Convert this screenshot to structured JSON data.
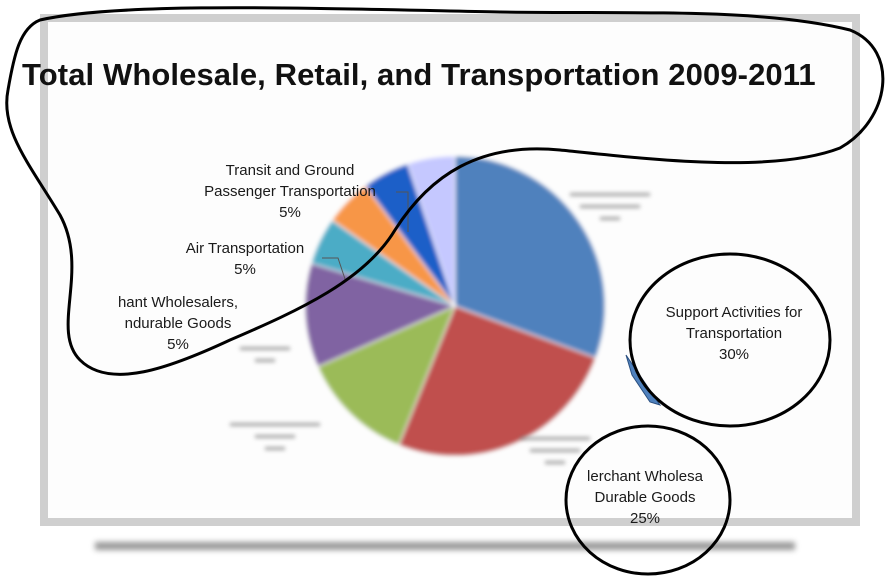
{
  "chart_data": {
    "type": "pie",
    "title": "Total Wholesale, Retail, and Transportation 2009-2011",
    "slices": [
      {
        "label": "Support Activities for Transportation",
        "value": 30,
        "value_label": "30%",
        "color": "#4f81bd"
      },
      {
        "label": "Merchant Wholesalers, Durable Goods",
        "value": 25,
        "value_label": "25%",
        "color": "#c0504d"
      },
      {
        "label": "",
        "value": 12,
        "value_label": "",
        "color": "#9bbb59"
      },
      {
        "label": "",
        "value": 11,
        "value_label": "",
        "color": "#8064a2"
      },
      {
        "label": "Merchant Wholesalers, Nondurable Goods",
        "value": 5,
        "value_label": "5%",
        "color": "#4bacc6"
      },
      {
        "label": "Air Transportation",
        "value": 5,
        "value_label": "5%",
        "color": "#f79646"
      },
      {
        "label": "Transit and Ground Passenger Transportation",
        "value": 5,
        "value_label": "5%",
        "color": "#1f5fc8"
      },
      {
        "label": "",
        "value": 5,
        "value_label": "",
        "color": "#c5c8ff"
      }
    ]
  },
  "labels": {
    "transit_line1": "Transit and Ground",
    "transit_line2": "Passenger Transportation",
    "transit_pct": "5%",
    "air_line1": "Air Transportation",
    "air_pct": "5%",
    "nondurable_line1": "hant Wholesalers,",
    "nondurable_line2": "ndurable Goods",
    "nondurable_pct": "5%",
    "support_line1": "Support Activities for",
    "support_line2": "Transportation",
    "support_pct": "30%",
    "durable_line1": "lerchant Wholesa",
    "durable_line2": "Durable Goods",
    "durable_pct": "25%"
  }
}
